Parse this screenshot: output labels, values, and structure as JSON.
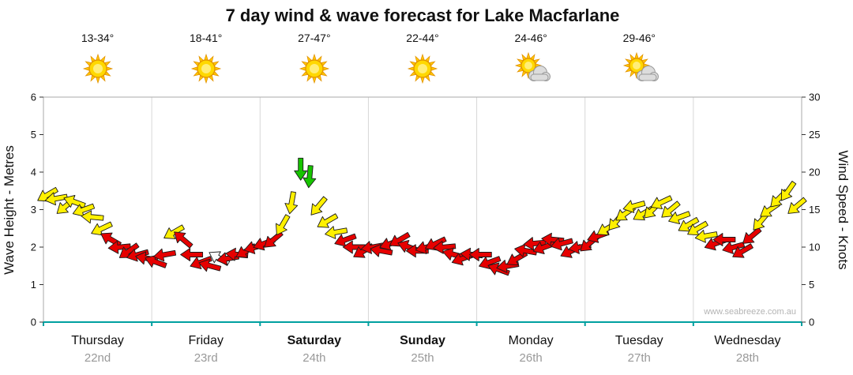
{
  "title": "7 day wind & wave forecast for Lake Macfarlane",
  "watermark": "www.seabreeze.com.au",
  "axes": {
    "left": {
      "label": "Wave Height - Metres",
      "ticks": [
        0,
        1,
        2,
        3,
        4,
        5,
        6
      ],
      "lim": [
        0,
        6
      ]
    },
    "right": {
      "label": "Wind Speed - Knots",
      "ticks": [
        0,
        5,
        10,
        15,
        20,
        25,
        30
      ],
      "lim": [
        0,
        30
      ]
    }
  },
  "daily_icons": [
    {
      "temp": "13-34°",
      "icon": "sunny"
    },
    {
      "temp": "18-41°",
      "icon": "sunny"
    },
    {
      "temp": "27-47°",
      "icon": "sunny"
    },
    {
      "temp": "22-44°",
      "icon": "sunny"
    },
    {
      "temp": "24-46°",
      "icon": "partly-cloudy"
    },
    {
      "temp": "29-46°",
      "icon": "partly-cloudy"
    }
  ],
  "chart_data": {
    "type": "scatter",
    "subtype": "wind-arrows",
    "categories": [
      "Thursday",
      "Friday",
      "Saturday",
      "Sunday",
      "Monday",
      "Tuesday",
      "Wednesday"
    ],
    "dates": [
      "22nd",
      "23rd",
      "24th",
      "25th",
      "26th",
      "27th",
      "28th"
    ],
    "bold_days": [
      false,
      false,
      true,
      true,
      false,
      false,
      false
    ],
    "points_per_day": 12,
    "ylim_left": [
      0,
      6
    ],
    "ylim_right": [
      0,
      30
    ],
    "grid": "vertical-day-boundaries",
    "legend": "none",
    "knots": [
      17,
      16.5,
      15.5,
      16,
      15,
      14,
      12.5,
      11,
      10,
      9.5,
      9,
      8.5,
      8,
      9,
      12,
      11,
      9,
      8,
      7.5,
      8.5,
      8.5,
      9,
      9.5,
      10,
      10.5,
      11,
      13,
      16,
      20.5,
      19.5,
      15.5,
      13.5,
      12,
      11,
      10,
      9.5,
      10,
      9.5,
      10.5,
      11,
      10,
      9.5,
      10,
      10.5,
      10,
      9,
      8.5,
      9,
      9,
      8,
      7,
      7.5,
      8.5,
      9.5,
      10.5,
      10,
      11,
      10.5,
      9.5,
      10,
      10.5,
      11.5,
      12.5,
      13.5,
      14.5,
      15.5,
      14.5,
      15,
      16,
      15,
      14,
      13,
      12.5,
      11.5,
      10.5,
      11,
      10,
      9.5,
      11.5,
      13.5,
      15,
      16.5,
      17.5,
      15.5
    ],
    "dir_deg": [
      150,
      170,
      140,
      200,
      160,
      185,
      155,
      210,
      175,
      145,
      165,
      190,
      200,
      170,
      150,
      220,
      180,
      160,
      195,
      210,
      170,
      185,
      150,
      165,
      160,
      140,
      120,
      100,
      90,
      95,
      130,
      150,
      170,
      160,
      180,
      150,
      170,
      190,
      160,
      150,
      200,
      180,
      165,
      155,
      175,
      195,
      160,
      185,
      180,
      160,
      200,
      170,
      150,
      190,
      175,
      160,
      185,
      165,
      155,
      170,
      140,
      160,
      150,
      130,
      145,
      165,
      150,
      135,
      155,
      140,
      160,
      150,
      150,
      170,
      160,
      180,
      165,
      150,
      140,
      130,
      145,
      135,
      125,
      140
    ],
    "point_colors": "YYYYYYYRRRRRRRYRRRRWRRRRRRYYGGYYYRRRRRRRRRRRRRRRRRRRRRRRRRRRRRYYYYYYYYYYYYRRRRRYYYYY",
    "colors": {
      "yellow": "#FFF000",
      "red": "#E60000",
      "green": "#17C400",
      "white": "#FAFAFA",
      "outline": "#1A1A1A",
      "bottom_axis": "#00A0A0",
      "grid": "#D8D8D8",
      "frame": "#AAAAAA",
      "date_text": "#999999"
    }
  }
}
